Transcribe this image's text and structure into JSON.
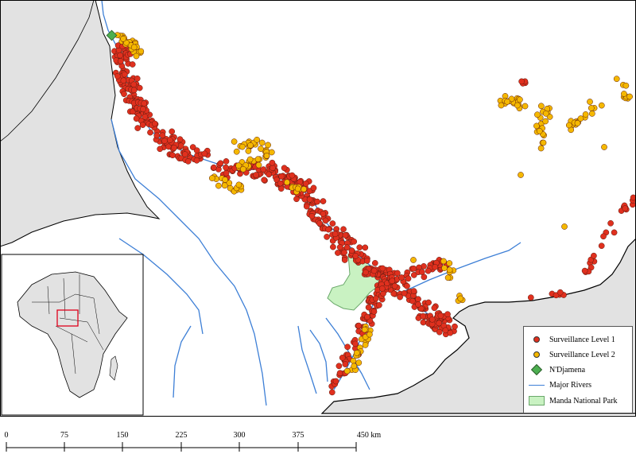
{
  "legend": {
    "items": [
      {
        "label": "Surveillance Level 1",
        "symbol": "red-dot",
        "color": "#e0301e"
      },
      {
        "label": "Surveillance Level 2",
        "symbol": "yellow-dot",
        "color": "#f5b800"
      },
      {
        "label": "N'Djamena",
        "symbol": "green-diamond",
        "color": "#4caf50"
      },
      {
        "label": "Major Rivers",
        "symbol": "blue-line",
        "color": "#3d7fd6"
      },
      {
        "label": "Manda National Park",
        "symbol": "green-area",
        "color": "#c9f2c2"
      }
    ]
  },
  "scale_bar": {
    "ticks": [
      "0",
      "75",
      "150",
      "225",
      "300",
      "375",
      "450 km"
    ]
  },
  "colors": {
    "land_outside": "#e2e2e2",
    "chad_fill": "#ffffff",
    "border": "#000000",
    "river": "#3d7fd6",
    "park": "#c9f2c2",
    "level1": "#e0301e",
    "level2": "#f5b800"
  }
}
